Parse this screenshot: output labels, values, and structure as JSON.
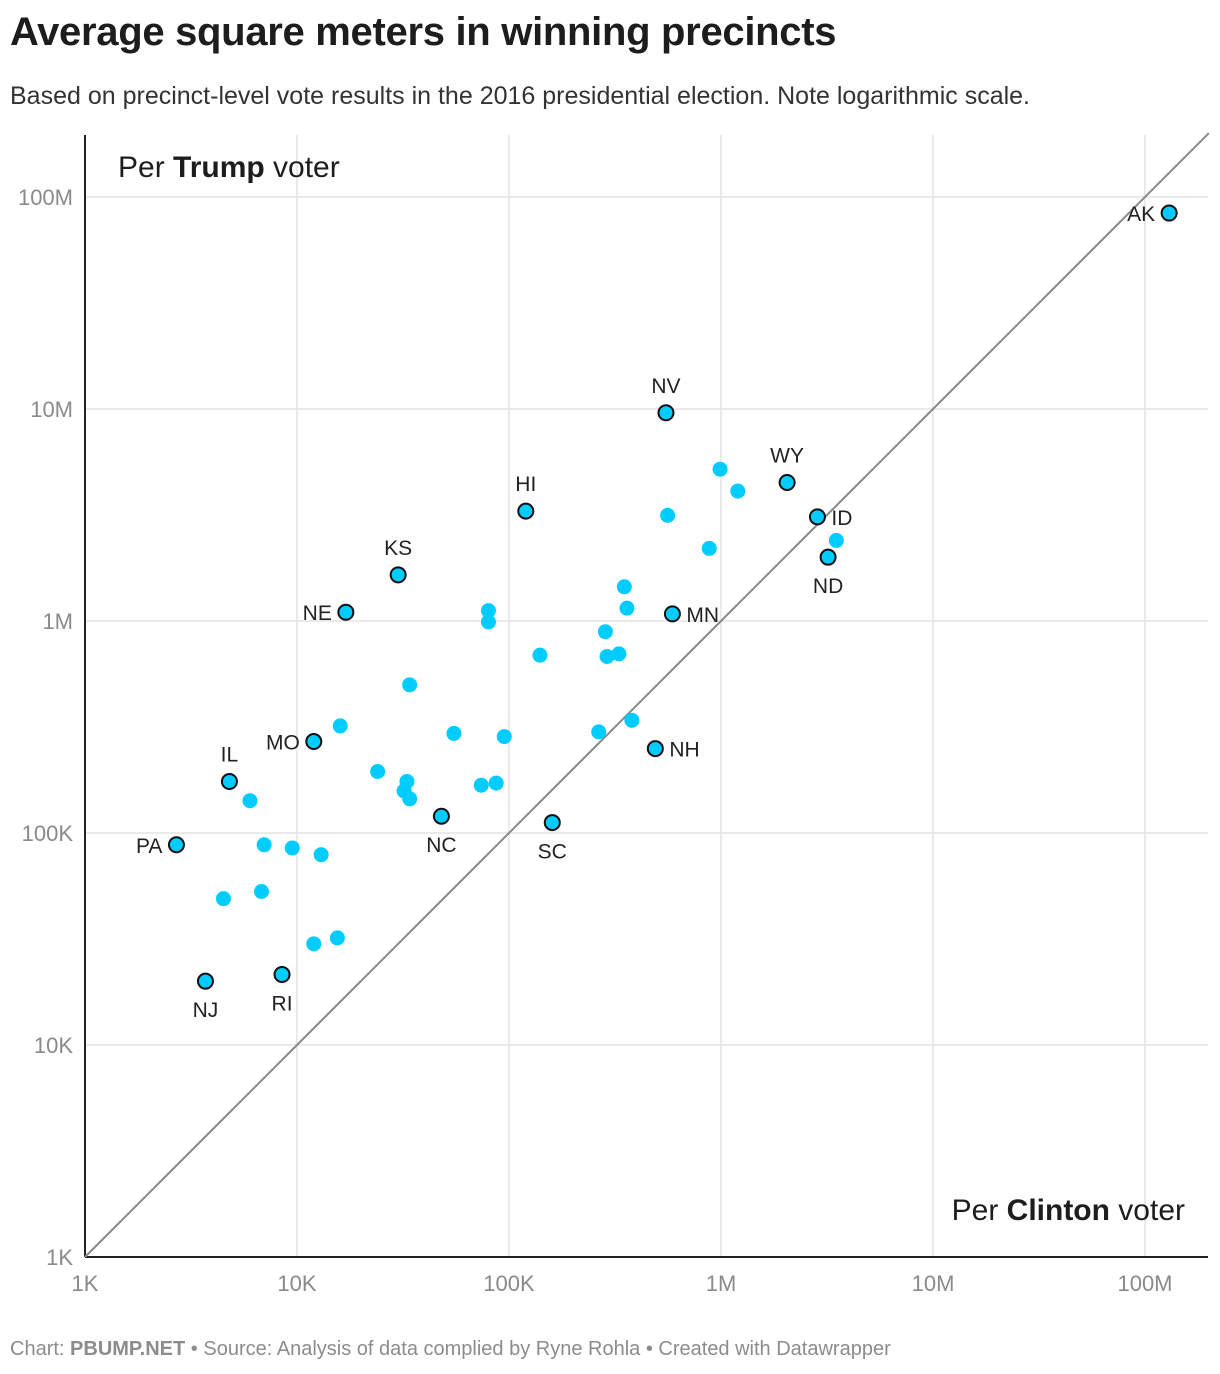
{
  "title": "Average square meters in winning precincts",
  "subtitle": "Based on precinct-level vote results in the 2016 presidential election. Note logarithmic scale.",
  "footer": {
    "chart_prefix": "Chart: ",
    "chart_brand": "PBUMP.NET",
    "separator": " • ",
    "source": "Source: Analysis of data complied by Ryne Rohla",
    "credit": "Created with Datawrapper"
  },
  "colors": {
    "dot": "#00ccff",
    "dot_stroke": "#111111",
    "grid": "#e3e3e3",
    "diagonal": "#888888",
    "axis": "#222222"
  },
  "chart_data": {
    "type": "scatter",
    "x_scale": "log",
    "y_scale": "log",
    "xlim": [
      1000,
      200000000
    ],
    "ylim": [
      1000,
      200000000
    ],
    "x_ticks": [
      {
        "value": 1000,
        "label": "1K"
      },
      {
        "value": 10000,
        "label": "10K"
      },
      {
        "value": 100000,
        "label": "100K"
      },
      {
        "value": 1000000,
        "label": "1M"
      },
      {
        "value": 10000000,
        "label": "10M"
      },
      {
        "value": 100000000,
        "label": "100M"
      }
    ],
    "y_ticks": [
      {
        "value": 1000,
        "label": "1K"
      },
      {
        "value": 10000,
        "label": "10K"
      },
      {
        "value": 100000,
        "label": "100K"
      },
      {
        "value": 1000000,
        "label": "1M"
      },
      {
        "value": 10000000,
        "label": "10M"
      },
      {
        "value": 100000000,
        "label": "100M"
      }
    ],
    "grid": true,
    "reference_line": "y = x",
    "y_corner_label": {
      "prefix": "Per ",
      "bold": "Trump",
      "suffix": " voter"
    },
    "x_corner_label": {
      "prefix": "Per ",
      "bold": "Clinton",
      "suffix": " voter"
    },
    "labeled_points": [
      {
        "label": "AK",
        "x": 130000000,
        "y": 84000000,
        "label_pos": "left"
      },
      {
        "label": "NV",
        "x": 550000,
        "y": 9600000,
        "label_pos": "above"
      },
      {
        "label": "WY",
        "x": 2050000,
        "y": 4500000,
        "label_pos": "above"
      },
      {
        "label": "ID",
        "x": 2850000,
        "y": 3100000,
        "label_pos": "right"
      },
      {
        "label": "ND",
        "x": 3200000,
        "y": 2000000,
        "label_pos": "below"
      },
      {
        "label": "HI",
        "x": 120000,
        "y": 3300000,
        "label_pos": "above"
      },
      {
        "label": "KS",
        "x": 30000,
        "y": 1650000,
        "label_pos": "above"
      },
      {
        "label": "NE",
        "x": 17000,
        "y": 1100000,
        "label_pos": "left"
      },
      {
        "label": "MN",
        "x": 590000,
        "y": 1080000,
        "label_pos": "right"
      },
      {
        "label": "MO",
        "x": 12000,
        "y": 270000,
        "label_pos": "left"
      },
      {
        "label": "NH",
        "x": 490000,
        "y": 250000,
        "label_pos": "right"
      },
      {
        "label": "IL",
        "x": 4800,
        "y": 175000,
        "label_pos": "above"
      },
      {
        "label": "NC",
        "x": 48000,
        "y": 120000,
        "label_pos": "below"
      },
      {
        "label": "SC",
        "x": 160000,
        "y": 112000,
        "label_pos": "below"
      },
      {
        "label": "PA",
        "x": 2700,
        "y": 88000,
        "label_pos": "left"
      },
      {
        "label": "NJ",
        "x": 3700,
        "y": 20000,
        "label_pos": "below"
      },
      {
        "label": "RI",
        "x": 8500,
        "y": 21500,
        "label_pos": "below"
      }
    ],
    "unlabeled_points": [
      {
        "x": 990000,
        "y": 5200000
      },
      {
        "x": 1200000,
        "y": 4100000
      },
      {
        "x": 560000,
        "y": 3150000
      },
      {
        "x": 880000,
        "y": 2200000
      },
      {
        "x": 3500000,
        "y": 2400000
      },
      {
        "x": 350000,
        "y": 1450000
      },
      {
        "x": 360000,
        "y": 1150000
      },
      {
        "x": 80000,
        "y": 1120000
      },
      {
        "x": 80000,
        "y": 990000
      },
      {
        "x": 285000,
        "y": 890000
      },
      {
        "x": 290000,
        "y": 680000
      },
      {
        "x": 330000,
        "y": 700000
      },
      {
        "x": 140000,
        "y": 690000
      },
      {
        "x": 34000,
        "y": 500000
      },
      {
        "x": 380000,
        "y": 340000
      },
      {
        "x": 16000,
        "y": 320000
      },
      {
        "x": 265000,
        "y": 300000
      },
      {
        "x": 55000,
        "y": 295000
      },
      {
        "x": 95000,
        "y": 285000
      },
      {
        "x": 24000,
        "y": 195000
      },
      {
        "x": 33000,
        "y": 175000
      },
      {
        "x": 32000,
        "y": 158000
      },
      {
        "x": 34000,
        "y": 145000
      },
      {
        "x": 74000,
        "y": 168000
      },
      {
        "x": 87000,
        "y": 172000
      },
      {
        "x": 6000,
        "y": 142000
      },
      {
        "x": 7000,
        "y": 88000
      },
      {
        "x": 9500,
        "y": 85000
      },
      {
        "x": 13000,
        "y": 79000
      },
      {
        "x": 4500,
        "y": 49000
      },
      {
        "x": 6800,
        "y": 53000
      },
      {
        "x": 12000,
        "y": 30000
      },
      {
        "x": 15500,
        "y": 32000
      }
    ]
  }
}
